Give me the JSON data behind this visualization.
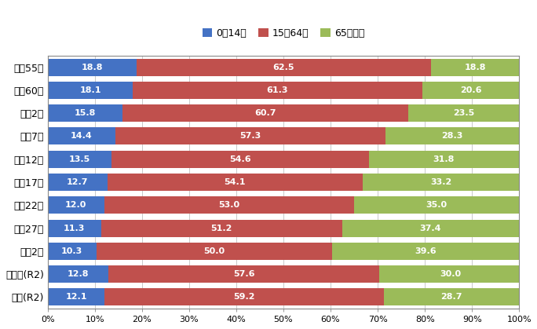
{
  "categories": [
    "昭和55年",
    "昭和60年",
    "平成2年",
    "平成7年",
    "平成12年",
    "平成17年",
    "平成22年",
    "平成27年",
    "令和2年",
    "広島県(R2)",
    "全国(R2)"
  ],
  "young": [
    18.8,
    18.1,
    15.8,
    14.4,
    13.5,
    12.7,
    12.0,
    11.3,
    10.3,
    12.8,
    12.1
  ],
  "working": [
    62.5,
    61.3,
    60.7,
    57.3,
    54.6,
    54.1,
    53.0,
    51.2,
    50.0,
    57.6,
    59.2
  ],
  "elderly": [
    18.8,
    20.6,
    23.5,
    28.3,
    31.8,
    33.2,
    35.0,
    37.4,
    39.6,
    30.0,
    28.7
  ],
  "color_young": "#4472C4",
  "color_working": "#C0504D",
  "color_elderly": "#9BBB59",
  "legend_labels": [
    "0～14歳",
    "15～64歳",
    "65歳以上"
  ],
  "xlim": [
    0,
    100
  ],
  "bar_height": 0.75,
  "background_color": "#FFFFFF",
  "grid_color": "#C0C0C0",
  "text_color": "#FFFFFF",
  "tick_labels": [
    "0%",
    "10%",
    "20%",
    "30%",
    "40%",
    "50%",
    "60%",
    "70%",
    "80%",
    "90%",
    "100%"
  ],
  "label_fontsize": 8.0,
  "ytick_fontsize": 9.0,
  "xtick_fontsize": 8.0,
  "legend_fontsize": 9.0
}
